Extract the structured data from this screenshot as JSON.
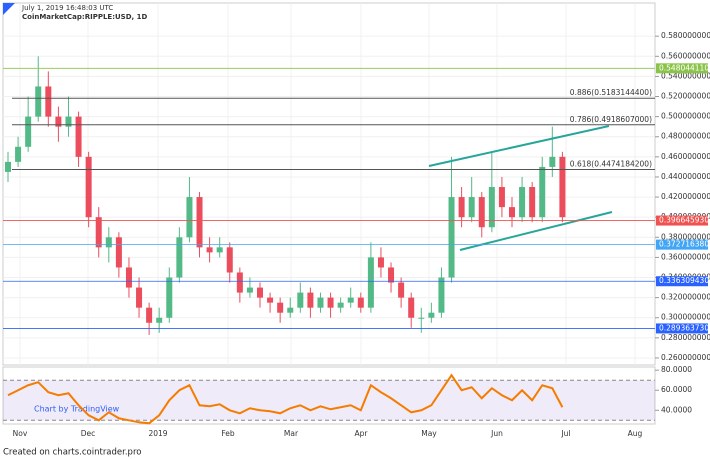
{
  "chart_data": {
    "type": "candlestick",
    "title": "CoinMarketCap:RIPPLE:USD, 1D",
    "subtitle": "July 1, 2019 16:48:03 UTC",
    "x_labels": [
      "Nov",
      "Dec",
      "2019",
      "Feb",
      "Mar",
      "Apr",
      "May",
      "Jun",
      "Jul",
      "Aug"
    ],
    "open": [
      0.445,
      0.455,
      0.47,
      0.5,
      0.53,
      0.5,
      0.49,
      0.5,
      0.46,
      0.4,
      0.37,
      0.38,
      0.35,
      0.33,
      0.31,
      0.295,
      0.3,
      0.34,
      0.38,
      0.42,
      0.37,
      0.365,
      0.37,
      0.345,
      0.325,
      0.33,
      0.32,
      0.315,
      0.305,
      0.31,
      0.325,
      0.31,
      0.32,
      0.31,
      0.315,
      0.32,
      0.31,
      0.36,
      0.35,
      0.335,
      0.32,
      0.3,
      0.3,
      0.305,
      0.34,
      0.42,
      0.4,
      0.42,
      0.39,
      0.43,
      0.41,
      0.4,
      0.43,
      0.4,
      0.45,
      0.46
    ],
    "high": [
      0.465,
      0.48,
      0.52,
      0.56,
      0.545,
      0.51,
      0.52,
      0.505,
      0.465,
      0.41,
      0.39,
      0.385,
      0.36,
      0.34,
      0.315,
      0.31,
      0.35,
      0.39,
      0.44,
      0.425,
      0.38,
      0.38,
      0.375,
      0.35,
      0.34,
      0.335,
      0.325,
      0.32,
      0.32,
      0.335,
      0.33,
      0.325,
      0.325,
      0.32,
      0.33,
      0.325,
      0.375,
      0.37,
      0.355,
      0.34,
      0.325,
      0.31,
      0.315,
      0.35,
      0.46,
      0.43,
      0.44,
      0.425,
      0.465,
      0.44,
      0.42,
      0.44,
      0.435,
      0.46,
      0.49,
      0.465
    ],
    "low": [
      0.435,
      0.45,
      0.465,
      0.495,
      0.49,
      0.475,
      0.48,
      0.45,
      0.39,
      0.36,
      0.355,
      0.34,
      0.32,
      0.3,
      0.283,
      0.285,
      0.295,
      0.335,
      0.375,
      0.36,
      0.355,
      0.36,
      0.335,
      0.315,
      0.32,
      0.31,
      0.305,
      0.295,
      0.3,
      0.305,
      0.3,
      0.305,
      0.3,
      0.305,
      0.31,
      0.305,
      0.305,
      0.34,
      0.325,
      0.31,
      0.29,
      0.285,
      0.295,
      0.3,
      0.335,
      0.39,
      0.395,
      0.38,
      0.385,
      0.4,
      0.39,
      0.395,
      0.395,
      0.395,
      0.44,
      0.395
    ],
    "close": [
      0.455,
      0.47,
      0.5,
      0.53,
      0.5,
      0.49,
      0.5,
      0.46,
      0.4,
      0.37,
      0.38,
      0.35,
      0.33,
      0.31,
      0.295,
      0.3,
      0.34,
      0.38,
      0.42,
      0.37,
      0.365,
      0.37,
      0.345,
      0.325,
      0.33,
      0.32,
      0.315,
      0.305,
      0.31,
      0.325,
      0.31,
      0.32,
      0.31,
      0.315,
      0.32,
      0.31,
      0.36,
      0.35,
      0.335,
      0.32,
      0.3,
      0.3,
      0.305,
      0.34,
      0.42,
      0.4,
      0.42,
      0.39,
      0.43,
      0.41,
      0.4,
      0.43,
      0.4,
      0.45,
      0.46,
      0.4
    ],
    "up_color": "#53b987",
    "down_color": "#eb4d5c",
    "ylim": [
      0.253,
      0.613
    ],
    "yticks": [
      {
        "value": 0.58,
        "label": "0.5800000000"
      },
      {
        "value": 0.56,
        "label": "0.5600000000"
      },
      {
        "value": 0.54,
        "label": "0.5400000000"
      },
      {
        "value": 0.52,
        "label": "0.5200000000"
      },
      {
        "value": 0.5,
        "label": "0.5000000000"
      },
      {
        "value": 0.48,
        "label": "0.4800000000"
      },
      {
        "value": 0.46,
        "label": "0.4600000000"
      },
      {
        "value": 0.44,
        "label": "0.4400000000"
      },
      {
        "value": 0.42,
        "label": "0.4200000000"
      },
      {
        "value": 0.4,
        "label": "0.4000000000"
      },
      {
        "value": 0.38,
        "label": "0.3800000000"
      },
      {
        "value": 0.36,
        "label": "0.3600000000"
      },
      {
        "value": 0.34,
        "label": "0.3400000000"
      },
      {
        "value": 0.32,
        "label": "0.3200000000"
      },
      {
        "value": 0.3,
        "label": "0.3000000000"
      },
      {
        "value": 0.28,
        "label": "0.2800000000"
      },
      {
        "value": 0.26,
        "label": "0.2600000000"
      }
    ],
    "levels": [
      {
        "value": 0.54804411,
        "label": "0.5480441100",
        "color": "#8bc34a"
      },
      {
        "value": 0.39664593,
        "label": "0.3966459300",
        "color": "#ef5350"
      },
      {
        "value": 0.37271638,
        "label": "0.3727163800",
        "color": "#42a5f5"
      },
      {
        "value": 0.33630943,
        "label": "0.3363094300",
        "color": "#2962ff"
      },
      {
        "value": 0.28936373,
        "label": "0.2893637300",
        "color": "#2962ff"
      }
    ],
    "fib_levels": [
      {
        "value": 0.51831444,
        "label": "0.886(0.5183144400)"
      },
      {
        "value": 0.4918607,
        "label": "0.786(0.4918607000)"
      },
      {
        "value": 0.44741842,
        "label": "0.618(0.4474184200)"
      }
    ],
    "rsi": {
      "values": [
        55,
        60,
        65,
        68,
        58,
        55,
        57,
        45,
        35,
        30,
        38,
        32,
        30,
        28,
        27,
        35,
        50,
        60,
        65,
        45,
        44,
        46,
        40,
        37,
        42,
        40,
        39,
        37,
        42,
        45,
        40,
        44,
        41,
        43,
        45,
        40,
        65,
        58,
        52,
        45,
        38,
        40,
        45,
        60,
        75,
        60,
        63,
        52,
        62,
        55,
        50,
        60,
        50,
        65,
        62,
        43
      ],
      "color": "#f57c00",
      "ylim": [
        26.3,
        83.2
      ],
      "band": [
        30,
        70
      ],
      "yticks": [
        {
          "value": 80,
          "label": "80.0000"
        },
        {
          "value": 60,
          "label": "60.0000"
        },
        {
          "value": 40,
          "label": "40.0000"
        }
      ]
    },
    "watermark": "Chart by TradingView"
  },
  "footer": "Created on charts.cointrader.pro"
}
